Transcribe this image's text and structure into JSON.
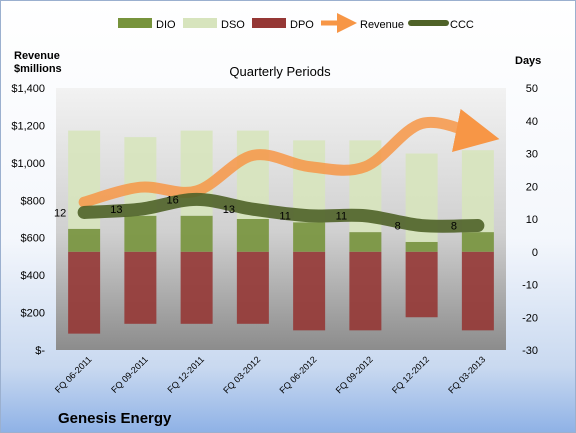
{
  "chart_data": {
    "type": "bar",
    "title": "Quarterly Periods",
    "company": "Genesis Energy",
    "left_axis_label": [
      "Revenue",
      "$millions"
    ],
    "right_axis_label": "Days",
    "categories": [
      "FQ 06-2011",
      "FQ 09-2011",
      "FQ 12-2011",
      "FQ 03-2012",
      "FQ 06-2012",
      "FQ 09-2012",
      "FQ 12-2012",
      "FQ 03-2013"
    ],
    "left_ticks": [
      "$1,400",
      "$1,200",
      "$1,000",
      "$800",
      "$600",
      "$400",
      "$200",
      "$-"
    ],
    "right_ticks": [
      "50",
      "40",
      "30",
      "20",
      "10",
      "0",
      "-10",
      "-20",
      "-30"
    ],
    "ylim_right": [
      -30,
      50
    ],
    "ylim_left": [
      0,
      1400
    ],
    "series": [
      {
        "name": "DIO",
        "color": "#77933c",
        "values": [
          7,
          11,
          11,
          10,
          9,
          6,
          3,
          6
        ]
      },
      {
        "name": "DSO",
        "color": "#d7e4bd",
        "values": [
          30,
          24,
          26,
          27,
          25,
          28,
          27,
          25
        ]
      },
      {
        "name": "DPO",
        "color": "#953735",
        "values": [
          -25,
          -22,
          -22,
          -22,
          -24,
          -24,
          -20,
          -24
        ]
      },
      {
        "name": "Revenue",
        "color": "#f79646",
        "values": [
          790,
          870,
          850,
          1040,
          980,
          980,
          1210,
          1150
        ]
      },
      {
        "name": "CCC",
        "color": "#4f6228",
        "values": [
          12,
          13,
          16,
          13,
          11,
          11,
          8,
          8
        ]
      }
    ],
    "ccc_labels": [
      "12",
      "13",
      "16",
      "13",
      "11",
      "11",
      "8",
      "8"
    ],
    "legend_position": "top",
    "grid": false
  }
}
